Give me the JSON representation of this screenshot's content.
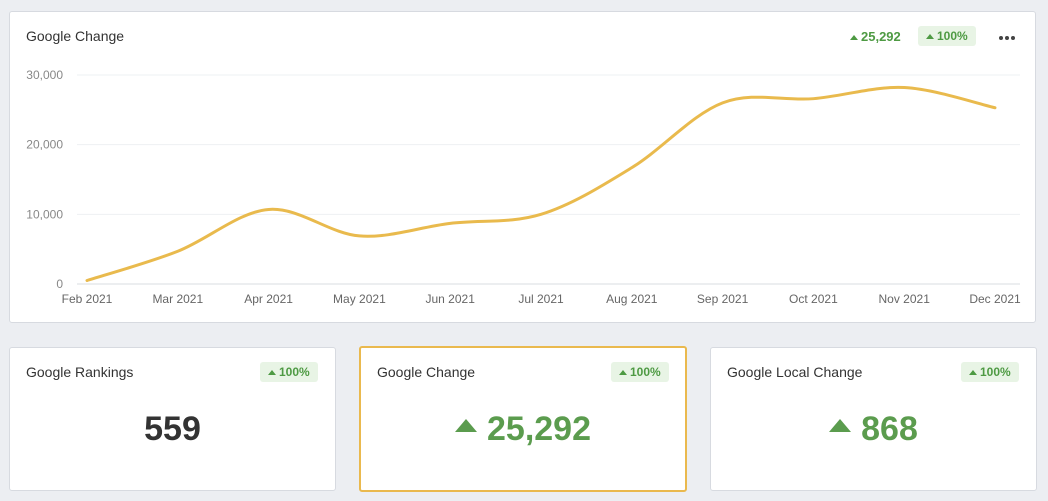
{
  "main_card": {
    "title": "Google Change",
    "value": "25,292",
    "change_badge": "100%"
  },
  "chart_data": {
    "type": "line",
    "x": [
      "Feb 2021",
      "Mar 2021",
      "Apr 2021",
      "May 2021",
      "Jun 2021",
      "Jul 2021",
      "Aug 2021",
      "Sep 2021",
      "Oct 2021",
      "Nov 2021",
      "Dec 2021"
    ],
    "y_ticks": [
      "0",
      "10,000",
      "20,000",
      "30,000"
    ],
    "ylim": [
      0,
      30000
    ],
    "series": [
      {
        "values": [
          500,
          4700,
          10700,
          6900,
          8700,
          10000,
          16700,
          26000,
          26600,
          28200,
          25300
        ],
        "color": "#e9ba4d"
      }
    ],
    "grid": true
  },
  "cards": [
    {
      "title": "Google Rankings",
      "badge": "100%",
      "value": "559"
    },
    {
      "title": "Google Change",
      "badge": "100%",
      "value": "25,292"
    },
    {
      "title": "Google Local Change",
      "badge": "100%",
      "value": "868"
    }
  ]
}
